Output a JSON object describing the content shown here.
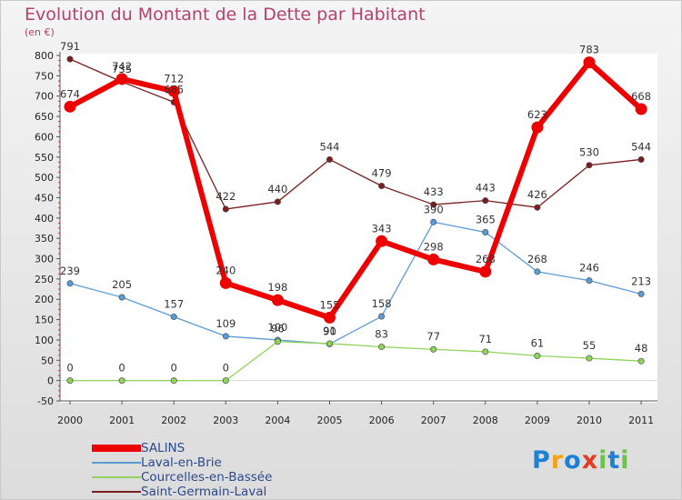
{
  "chart_data": {
    "type": "line",
    "title": "Evolution du Montant de la Dette par Habitant",
    "unit_label": "(en €)",
    "x": [
      "2000",
      "2001",
      "2002",
      "2003",
      "2004",
      "2005",
      "2006",
      "2007",
      "2008",
      "2009",
      "2010",
      "2011"
    ],
    "ylim": [
      -50,
      800
    ],
    "yticks": [
      -50,
      0,
      50,
      100,
      150,
      200,
      250,
      300,
      350,
      400,
      450,
      500,
      550,
      600,
      650,
      700,
      750,
      800
    ],
    "grid": false,
    "legend_position": "bottom-left",
    "series": [
      {
        "name": "SALINS",
        "color": "#ee0000",
        "values": [
          674,
          742,
          712,
          240,
          198,
          155,
          343,
          298,
          268,
          623,
          783,
          668
        ]
      },
      {
        "name": "Laval-en-Brie",
        "color": "#5b9bd5",
        "values": [
          239,
          205,
          157,
          109,
          100,
          90,
          158,
          390,
          365,
          268,
          246,
          213
        ]
      },
      {
        "name": "Courcelles-en-Bassée",
        "color": "#8fd45a",
        "values": [
          0,
          0,
          0,
          0,
          96,
          91,
          83,
          77,
          71,
          61,
          55,
          48
        ]
      },
      {
        "name": "Saint-Germain-Laval",
        "color": "#7a1f1f",
        "values": [
          791,
          735,
          685,
          422,
          440,
          544,
          479,
          433,
          443,
          426,
          530,
          544
        ]
      }
    ]
  },
  "brand": {
    "letters": [
      "P",
      "r",
      "o",
      "x",
      "i",
      "t",
      "i"
    ],
    "colors": [
      "#1e7fd6",
      "#f3a21b",
      "#1e7fd6",
      "#e63b1e",
      "#6cc24a",
      "#1e7fd6",
      "#6cc24a"
    ]
  }
}
